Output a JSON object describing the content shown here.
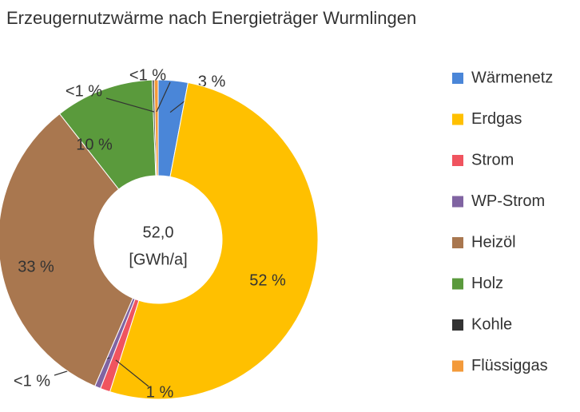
{
  "chart_data": {
    "type": "donut",
    "title": "Erzeugernutzwärme nach Energieträger Wurmlingen",
    "center_label": [
      "52,0",
      "[GWh/a]"
    ],
    "categories": [
      "Wärmenetz",
      "Erdgas",
      "Strom",
      "WP-Strom",
      "Heizöl",
      "Holz",
      "Kohle",
      "Flüssiggas"
    ],
    "values": [
      3,
      52,
      1,
      0.6,
      33,
      10,
      0.2,
      0.4
    ],
    "value_labels": [
      "3 %",
      "52 %",
      "1 %",
      "<1 %",
      "33 %",
      "10 %",
      "<1 %",
      "<1 %"
    ],
    "colors": [
      "#4a86d8",
      "#ffc000",
      "#f0545f",
      "#8064a2",
      "#a9774f",
      "#5a9a3c",
      "#333333",
      "#f39a3a"
    ],
    "legend": "right"
  }
}
